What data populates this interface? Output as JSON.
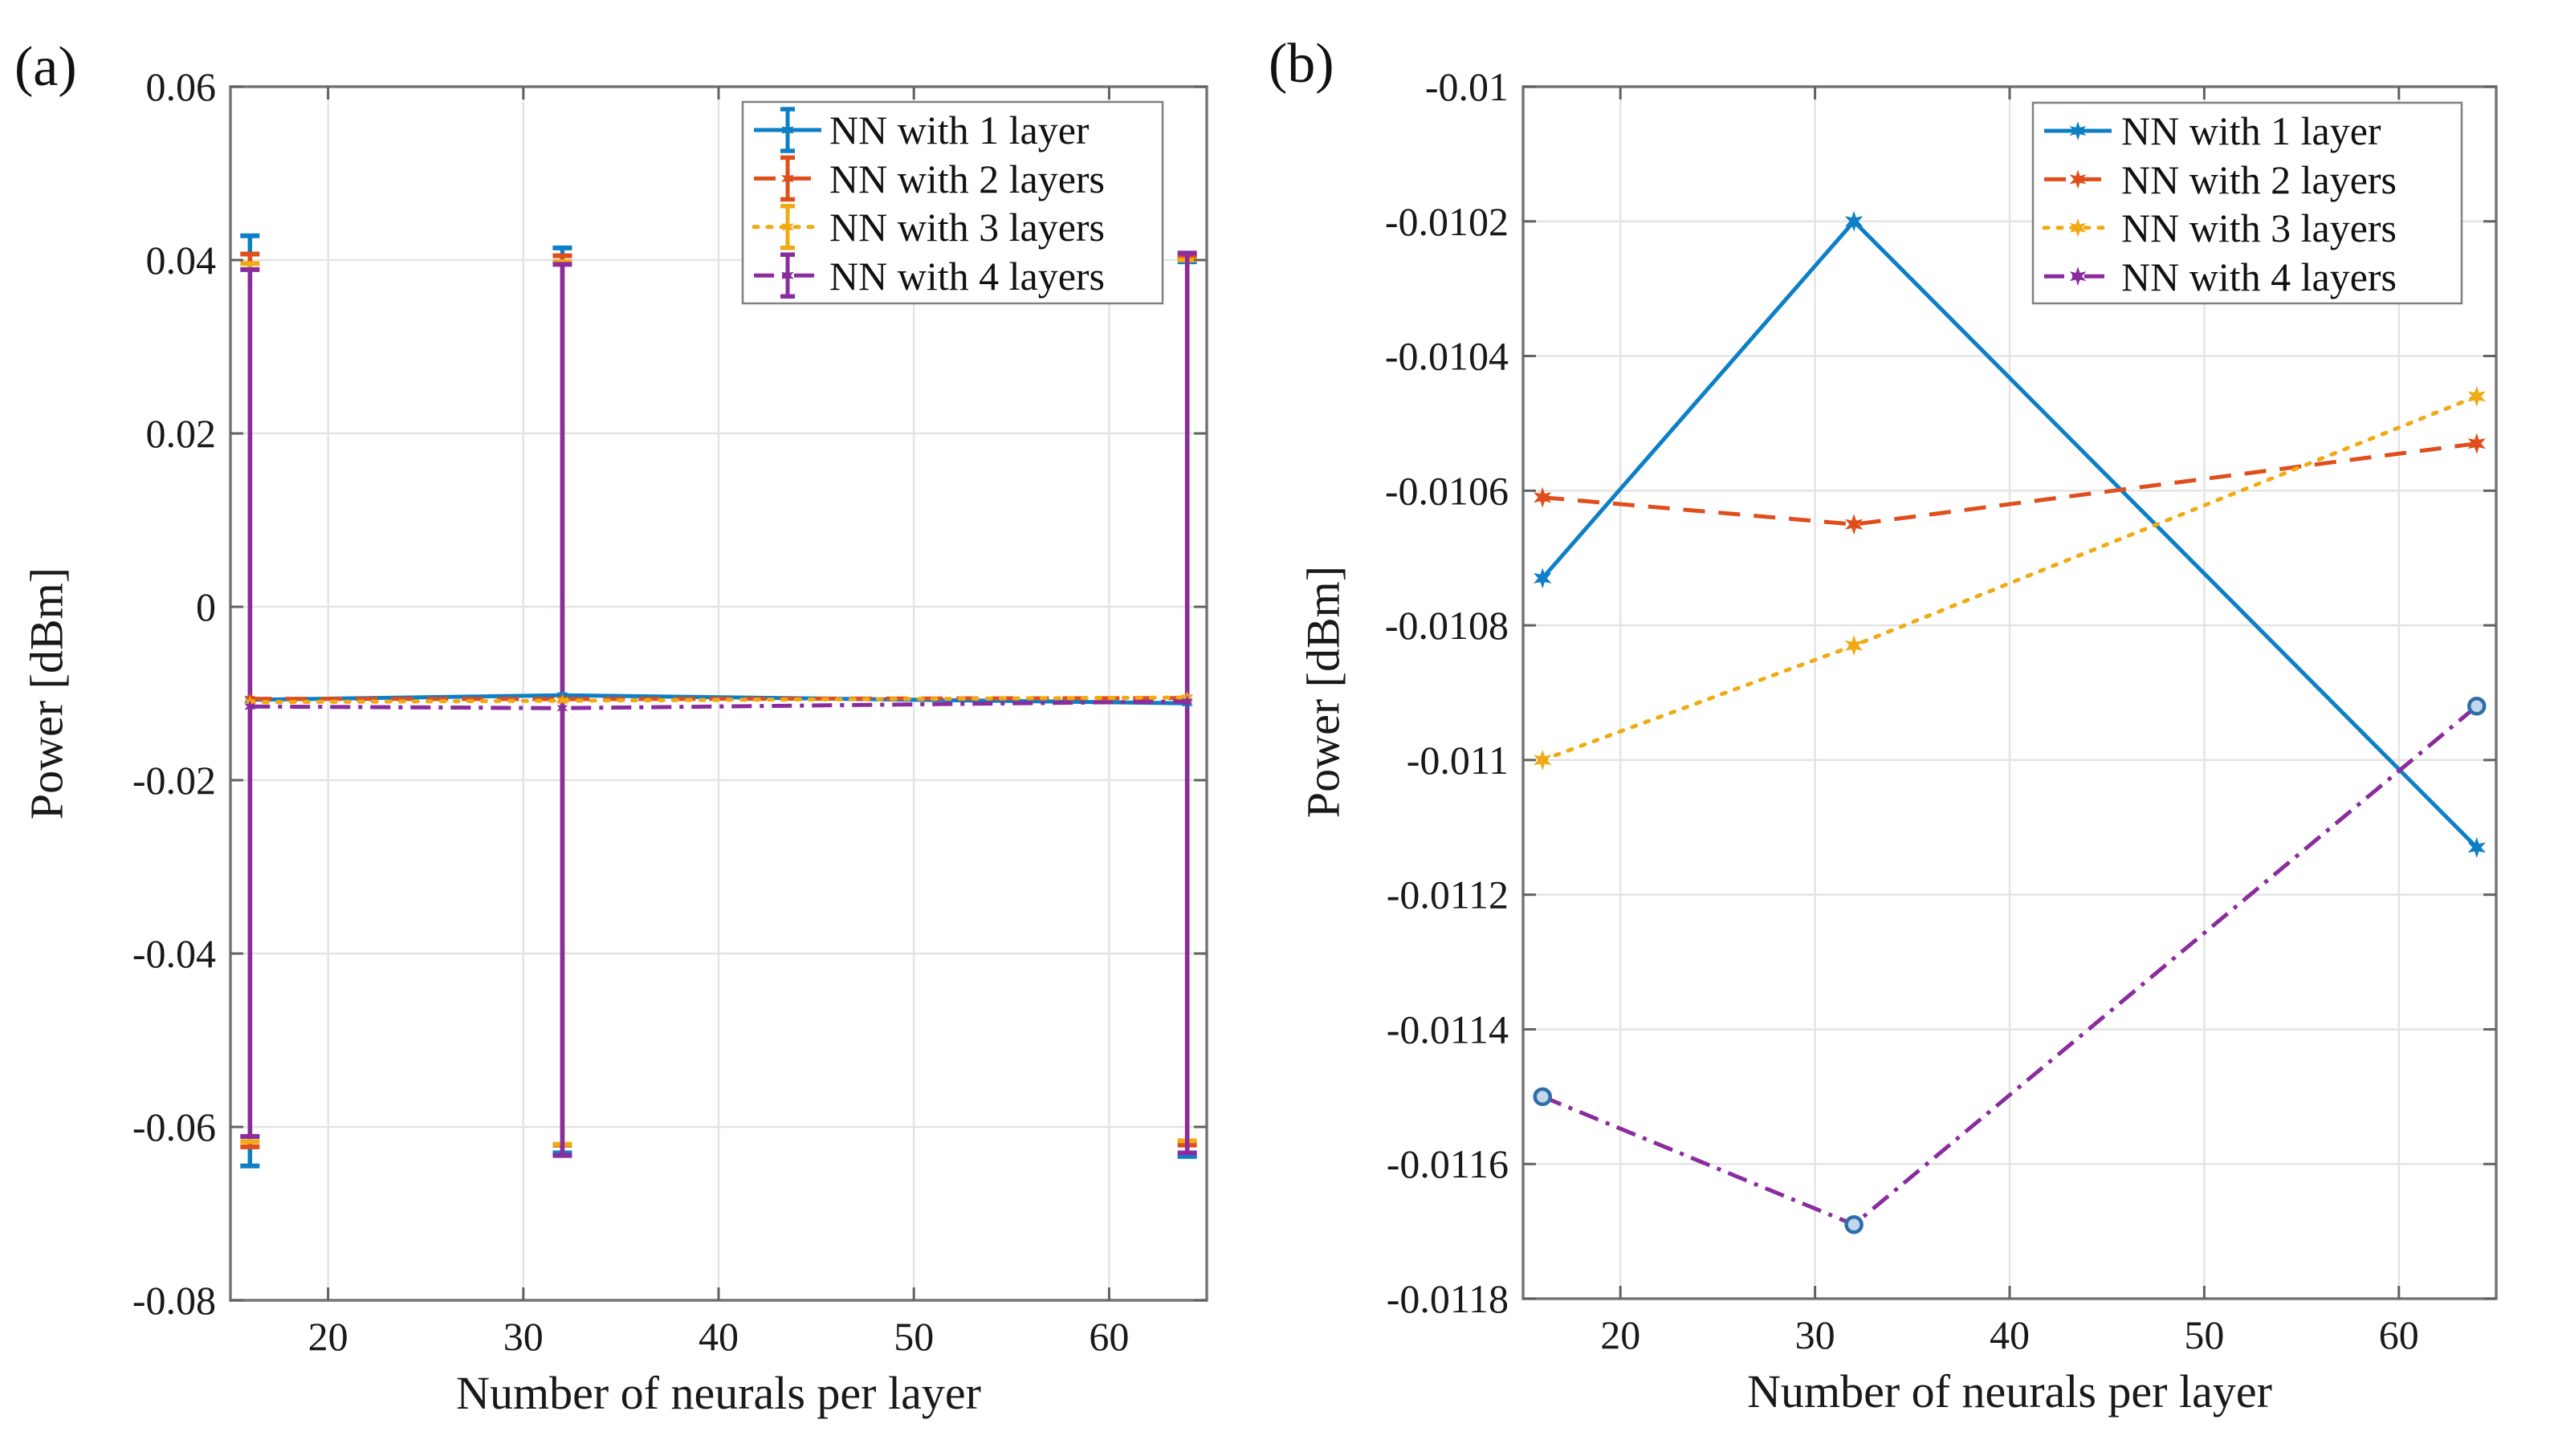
{
  "figure": {
    "background": "#ffffff",
    "grid_color": "#e4e4e4",
    "spine_color": "#757575",
    "tick_color": "#616161",
    "text_color": "#191919"
  },
  "chart_data": [
    {
      "type": "line",
      "panel_label": "(a)",
      "xlabel": "Number of neurals per layer",
      "ylabel": "Power [dBm]",
      "xlim": [
        15,
        65
      ],
      "ylim": [
        -0.08,
        0.06
      ],
      "xticks": [
        20,
        30,
        40,
        50,
        60
      ],
      "xtick_labels": [
        "20",
        "30",
        "40",
        "50",
        "60"
      ],
      "yticks": [
        0.06,
        0.04,
        0.02,
        0,
        -0.02,
        -0.04,
        -0.06,
        -0.08
      ],
      "ytick_labels": [
        "0.06",
        "0.04",
        "0.02",
        "0",
        "-0.02",
        "-0.04",
        "-0.06",
        "-0.08"
      ],
      "x": [
        16,
        32,
        64
      ],
      "grid": true,
      "legend_position": "top-right",
      "series": [
        {
          "name": "NN with 1 layer",
          "color": "#0d7fc6",
          "line_style": "solid",
          "marker": "star",
          "values": [
            -0.01073,
            -0.0102,
            -0.01113
          ],
          "error_top": [
            0.0428,
            0.0414,
            0.0398
          ],
          "error_bottom": [
            -0.0645,
            -0.063,
            -0.0634
          ]
        },
        {
          "name": "NN with 2 layers",
          "color": "#df4e1b",
          "line_style": "dashed",
          "marker": "star",
          "values": [
            -0.01061,
            -0.01065,
            -0.01053
          ],
          "error_top": [
            0.0407,
            0.0405,
            0.0403
          ],
          "error_bottom": [
            -0.0623,
            -0.0621,
            -0.0621
          ]
        },
        {
          "name": "NN with 3 layers",
          "color": "#f0ab14",
          "line_style": "dotted",
          "marker": "star",
          "values": [
            -0.011,
            -0.01083,
            -0.01046
          ],
          "error_top": [
            0.0396,
            0.0398,
            0.04
          ],
          "error_bottom": [
            -0.0617,
            -0.062,
            -0.0616
          ]
        },
        {
          "name": "NN with 4 layers",
          "color": "#8a2c9e",
          "line_style": "dashdot",
          "marker": "star",
          "values": [
            -0.0115,
            -0.01169,
            -0.01092
          ],
          "error_top": [
            0.0389,
            0.0395,
            0.0408
          ],
          "error_bottom": [
            -0.0611,
            -0.0633,
            -0.063
          ]
        }
      ]
    },
    {
      "type": "line",
      "panel_label": "(b)",
      "xlabel": "Number of neurals per layer",
      "ylabel": "Power [dBm]",
      "xlim": [
        15,
        65
      ],
      "ylim": [
        -0.0118,
        -0.01
      ],
      "xticks": [
        20,
        30,
        40,
        50,
        60
      ],
      "xtick_labels": [
        "20",
        "30",
        "40",
        "50",
        "60"
      ],
      "yticks": [
        -0.01,
        -0.0102,
        -0.0104,
        -0.0106,
        -0.0108,
        -0.011,
        -0.0112,
        -0.0114,
        -0.0116,
        -0.0118
      ],
      "ytick_labels": [
        "-0.01",
        "-0.0102",
        "-0.0104",
        "-0.0106",
        "-0.0108",
        "-0.011",
        "-0.0112",
        "-0.0114",
        "-0.0116",
        "-0.0118"
      ],
      "x": [
        16,
        32,
        64
      ],
      "grid": true,
      "legend_position": "top-right",
      "series": [
        {
          "name": "NN with 1 layer",
          "color": "#0d7fc6",
          "line_style": "solid",
          "marker": "star",
          "values": [
            -0.01073,
            -0.0102,
            -0.01113
          ]
        },
        {
          "name": "NN with 2 layers",
          "color": "#df4e1b",
          "line_style": "dashed",
          "marker": "star",
          "values": [
            -0.01061,
            -0.01065,
            -0.01053
          ]
        },
        {
          "name": "NN with 3 layers",
          "color": "#f0ab14",
          "line_style": "dotted",
          "marker": "star",
          "values": [
            -0.011,
            -0.01083,
            -0.01046
          ]
        },
        {
          "name": "NN with 4 layers",
          "color": "#8a2c9e",
          "line_style": "dashdot",
          "marker": "open-circle",
          "marker_edge": "#2d6eaa",
          "marker_fill": "#c3d7ec",
          "values": [
            -0.0115,
            -0.01169,
            -0.01092
          ]
        }
      ]
    }
  ]
}
